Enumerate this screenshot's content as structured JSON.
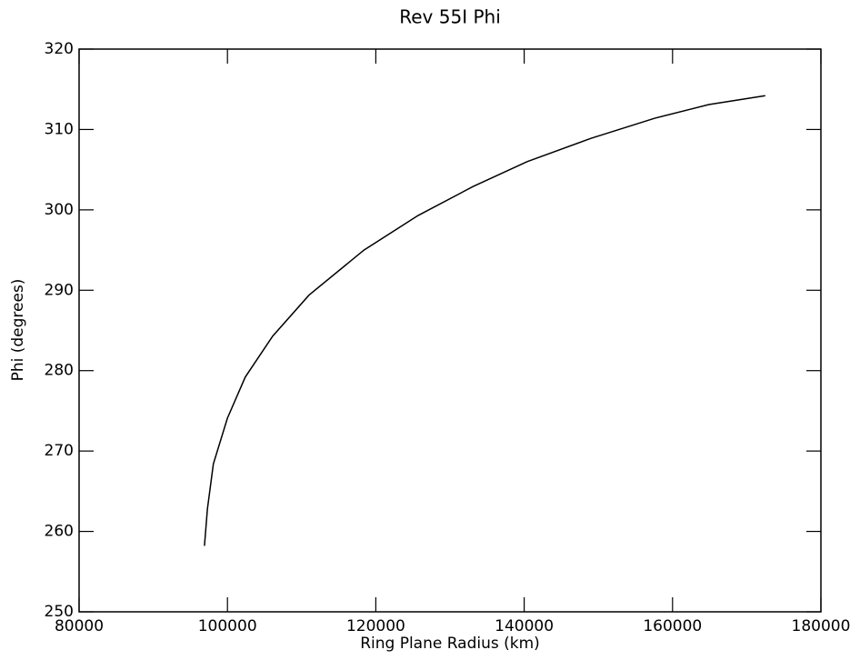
{
  "chart_data": {
    "type": "line",
    "title": "Rev 55I Phi",
    "x_label": "Ring Plane Radius (km)",
    "y_label": "Phi (degrees)",
    "series": [
      {
        "color": "#000000",
        "x": [
          96900,
          97300,
          98100,
          100000,
          102400,
          106100,
          111000,
          118400,
          125700,
          133100,
          140400,
          149000,
          157600,
          164900,
          172500
        ],
        "values": [
          258.2,
          262.8,
          268.4,
          274.1,
          279.2,
          284.3,
          289.4,
          295.0,
          299.3,
          302.9,
          306.0,
          308.9,
          311.4,
          313.1,
          314.2
        ]
      }
    ],
    "xlim": [
      80000,
      180000
    ],
    "xticks": [
      80000,
      100000,
      120000,
      140000,
      160000,
      180000
    ],
    "ylim": [
      250,
      320
    ],
    "yticks": [
      250,
      260,
      270,
      280,
      290,
      300,
      310,
      320
    ]
  }
}
